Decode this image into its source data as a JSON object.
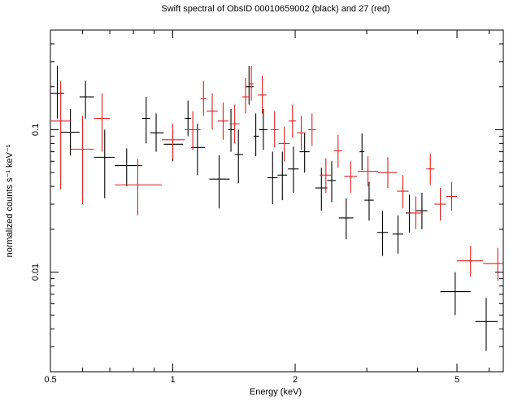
{
  "chart_data": {
    "type": "scatter",
    "title": "Swift spectral of ObsID 00010659002 (black) and 27 (red)",
    "xlabel": "Energy (keV)",
    "ylabel": "normalized counts s⁻¹ keV⁻¹",
    "x_scale": "log",
    "y_scale": "log",
    "xlim": [
      0.5,
      6.5
    ],
    "ylim": [
      0.002,
      0.5
    ],
    "x_ticks": [
      0.5,
      1,
      2,
      5
    ],
    "x_tick_labels": [
      "0.5",
      "1",
      "2",
      "5"
    ],
    "y_ticks": [
      0.01,
      0.1
    ],
    "y_tick_labels": [
      "0.01",
      "0.1"
    ],
    "grid": false,
    "series": [
      {
        "color": "#000000",
        "points": [
          {
            "x": 0.52,
            "xerr": [
              0.5,
              0.54
            ],
            "y": 0.18,
            "yerr": [
              0.12,
              0.28
            ]
          },
          {
            "x": 0.56,
            "xerr": [
              0.53,
              0.59
            ],
            "y": 0.096,
            "yerr": [
              0.066,
              0.14
            ]
          },
          {
            "x": 0.61,
            "xerr": [
              0.59,
              0.64
            ],
            "y": 0.17,
            "yerr": [
              0.12,
              0.22
            ]
          },
          {
            "x": 0.68,
            "xerr": [
              0.64,
              0.72
            ],
            "y": 0.064,
            "yerr": [
              0.033,
              0.1
            ]
          },
          {
            "x": 0.77,
            "xerr": [
              0.72,
              0.84
            ],
            "y": 0.056,
            "yerr": [
              0.04,
              0.074
            ]
          },
          {
            "x": 0.86,
            "xerr": [
              0.84,
              0.88
            ],
            "y": 0.12,
            "yerr": [
              0.08,
              0.17
            ]
          },
          {
            "x": 0.91,
            "xerr": [
              0.88,
              0.95
            ],
            "y": 0.095,
            "yerr": [
              0.07,
              0.13
            ]
          },
          {
            "x": 1.0,
            "xerr": [
              0.95,
              1.06
            ],
            "y": 0.079,
            "yerr": [
              0.06,
              0.1
            ]
          },
          {
            "x": 1.09,
            "xerr": [
              1.07,
              1.11
            ],
            "y": 0.12,
            "yerr": [
              0.09,
              0.16
            ]
          },
          {
            "x": 1.15,
            "xerr": [
              1.11,
              1.2
            ],
            "y": 0.075,
            "yerr": [
              0.048,
              0.11
            ]
          },
          {
            "x": 1.3,
            "xerr": [
              1.23,
              1.38
            ],
            "y": 0.045,
            "yerr": [
              0.028,
              0.066
            ]
          },
          {
            "x": 1.39,
            "xerr": [
              1.37,
              1.42
            ],
            "y": 0.1,
            "yerr": [
              0.07,
              0.14
            ]
          },
          {
            "x": 1.45,
            "xerr": [
              1.42,
              1.49
            ],
            "y": 0.067,
            "yerr": [
              0.042,
              0.1
            ]
          },
          {
            "x": 1.54,
            "xerr": [
              1.51,
              1.58
            ],
            "y": 0.2,
            "yerr": [
              0.15,
              0.28
            ]
          },
          {
            "x": 1.6,
            "xerr": [
              1.58,
              1.63
            ],
            "y": 0.09,
            "yerr": [
              0.065,
              0.13
            ]
          },
          {
            "x": 1.67,
            "xerr": [
              1.63,
              1.71
            ],
            "y": 0.1,
            "yerr": [
              0.072,
              0.14
            ]
          },
          {
            "x": 1.76,
            "xerr": [
              1.71,
              1.81
            ],
            "y": 0.046,
            "yerr": [
              0.03,
              0.07
            ]
          },
          {
            "x": 1.86,
            "xerr": [
              1.81,
              1.91
            ],
            "y": 0.048,
            "yerr": [
              0.032,
              0.07
            ]
          },
          {
            "x": 1.98,
            "xerr": [
              1.92,
              2.04
            ],
            "y": 0.053,
            "yerr": [
              0.036,
              0.076
            ]
          },
          {
            "x": 2.11,
            "xerr": [
              2.05,
              2.17
            ],
            "y": 0.07,
            "yerr": [
              0.05,
              0.095
            ]
          },
          {
            "x": 2.32,
            "xerr": [
              2.24,
              2.4
            ],
            "y": 0.039,
            "yerr": [
              0.027,
              0.054
            ]
          },
          {
            "x": 2.46,
            "xerr": [
              2.4,
              2.52
            ],
            "y": 0.044,
            "yerr": [
              0.031,
              0.06
            ]
          },
          {
            "x": 2.67,
            "xerr": [
              2.56,
              2.78
            ],
            "y": 0.024,
            "yerr": [
              0.017,
              0.033
            ]
          },
          {
            "x": 2.92,
            "xerr": [
              2.88,
              2.96
            ],
            "y": 0.07,
            "yerr": [
              0.052,
              0.094
            ]
          },
          {
            "x": 3.04,
            "xerr": [
              2.96,
              3.12
            ],
            "y": 0.032,
            "yerr": [
              0.023,
              0.043
            ]
          },
          {
            "x": 3.28,
            "xerr": [
              3.18,
              3.38
            ],
            "y": 0.019,
            "yerr": [
              0.013,
              0.027
            ]
          },
          {
            "x": 3.58,
            "xerr": [
              3.47,
              3.69
            ],
            "y": 0.0185,
            "yerr": [
              0.0135,
              0.025
            ]
          },
          {
            "x": 3.82,
            "xerr": [
              3.74,
              3.9
            ],
            "y": 0.026,
            "yerr": [
              0.019,
              0.035
            ]
          },
          {
            "x": 4.1,
            "xerr": [
              3.97,
              4.23
            ],
            "y": 0.027,
            "yerr": [
              0.02,
              0.036
            ]
          },
          {
            "x": 4.95,
            "xerr": [
              4.55,
              5.4
            ],
            "y": 0.0073,
            "yerr": [
              0.005,
              0.01
            ]
          },
          {
            "x": 5.9,
            "xerr": [
              5.55,
              6.3
            ],
            "y": 0.0045,
            "yerr": [
              0.0028,
              0.0066
            ]
          }
        ]
      },
      {
        "color": "#e02020",
        "points": [
          {
            "x": 0.53,
            "xerr": [
              0.5,
              0.56
            ],
            "y": 0.115,
            "yerr": [
              0.038,
              0.22
            ]
          },
          {
            "x": 0.6,
            "xerr": [
              0.56,
              0.64
            ],
            "y": 0.073,
            "yerr": [
              0.03,
              0.125
            ]
          },
          {
            "x": 0.67,
            "xerr": [
              0.64,
              0.7
            ],
            "y": 0.12,
            "yerr": [
              0.07,
              0.18
            ]
          },
          {
            "x": 0.82,
            "xerr": [
              0.72,
              0.94
            ],
            "y": 0.041,
            "yerr": [
              0.025,
              0.062
            ]
          },
          {
            "x": 1.0,
            "xerr": [
              0.94,
              1.07
            ],
            "y": 0.085,
            "yerr": [
              0.062,
              0.11
            ]
          },
          {
            "x": 1.12,
            "xerr": [
              1.07,
              1.17
            ],
            "y": 0.1,
            "yerr": [
              0.072,
              0.135
            ]
          },
          {
            "x": 1.19,
            "xerr": [
              1.17,
              1.21
            ],
            "y": 0.165,
            "yerr": [
              0.125,
              0.22
            ]
          },
          {
            "x": 1.25,
            "xerr": [
              1.21,
              1.29
            ],
            "y": 0.135,
            "yerr": [
              0.1,
              0.18
            ]
          },
          {
            "x": 1.33,
            "xerr": [
              1.29,
              1.37
            ],
            "y": 0.115,
            "yerr": [
              0.085,
              0.155
            ]
          },
          {
            "x": 1.42,
            "xerr": [
              1.38,
              1.46
            ],
            "y": 0.11,
            "yerr": [
              0.08,
              0.15
            ]
          },
          {
            "x": 1.51,
            "xerr": [
              1.48,
              1.54
            ],
            "y": 0.17,
            "yerr": [
              0.13,
              0.23
            ]
          },
          {
            "x": 1.56,
            "xerr": [
              1.54,
              1.58
            ],
            "y": 0.21,
            "yerr": [
              0.16,
              0.28
            ]
          },
          {
            "x": 1.66,
            "xerr": [
              1.62,
              1.7
            ],
            "y": 0.175,
            "yerr": [
              0.13,
              0.24
            ]
          },
          {
            "x": 1.78,
            "xerr": [
              1.74,
              1.82
            ],
            "y": 0.1,
            "yerr": [
              0.075,
              0.135
            ]
          },
          {
            "x": 1.88,
            "xerr": [
              1.82,
              1.94
            ],
            "y": 0.08,
            "yerr": [
              0.06,
              0.105
            ]
          },
          {
            "x": 1.97,
            "xerr": [
              1.93,
              2.01
            ],
            "y": 0.115,
            "yerr": [
              0.088,
              0.15
            ]
          },
          {
            "x": 2.07,
            "xerr": [
              2.02,
              2.12
            ],
            "y": 0.095,
            "yerr": [
              0.072,
              0.125
            ]
          },
          {
            "x": 2.2,
            "xerr": [
              2.15,
              2.25
            ],
            "y": 0.1,
            "yerr": [
              0.077,
              0.13
            ]
          },
          {
            "x": 2.38,
            "xerr": [
              2.3,
              2.46
            ],
            "y": 0.048,
            "yerr": [
              0.036,
              0.063
            ]
          },
          {
            "x": 2.55,
            "xerr": [
              2.49,
              2.61
            ],
            "y": 0.071,
            "yerr": [
              0.054,
              0.092
            ]
          },
          {
            "x": 2.74,
            "xerr": [
              2.64,
              2.84
            ],
            "y": 0.047,
            "yerr": [
              0.036,
              0.06
            ]
          },
          {
            "x": 3.02,
            "xerr": [
              2.85,
              3.2
            ],
            "y": 0.051,
            "yerr": [
              0.04,
              0.065
            ]
          },
          {
            "x": 3.38,
            "xerr": [
              3.2,
              3.56
            ],
            "y": 0.05,
            "yerr": [
              0.039,
              0.064
            ]
          },
          {
            "x": 3.68,
            "xerr": [
              3.56,
              3.8
            ],
            "y": 0.037,
            "yerr": [
              0.028,
              0.048
            ]
          },
          {
            "x": 3.96,
            "xerr": [
              3.8,
              4.12
            ],
            "y": 0.026,
            "yerr": [
              0.02,
              0.034
            ]
          },
          {
            "x": 4.3,
            "xerr": [
              4.2,
              4.4
            ],
            "y": 0.053,
            "yerr": [
              0.041,
              0.068
            ]
          },
          {
            "x": 4.55,
            "xerr": [
              4.4,
              4.7
            ],
            "y": 0.03,
            "yerr": [
              0.023,
              0.039
            ]
          },
          {
            "x": 4.85,
            "xerr": [
              4.7,
              5.0
            ],
            "y": 0.034,
            "yerr": [
              0.027,
              0.043
            ]
          },
          {
            "x": 5.4,
            "xerr": [
              5.0,
              5.8
            ],
            "y": 0.012,
            "yerr": [
              0.0093,
              0.0153
            ]
          },
          {
            "x": 6.3,
            "xerr": [
              5.8,
              6.5
            ],
            "y": 0.0115,
            "yerr": [
              0.0087,
              0.0148
            ]
          }
        ]
      }
    ]
  }
}
